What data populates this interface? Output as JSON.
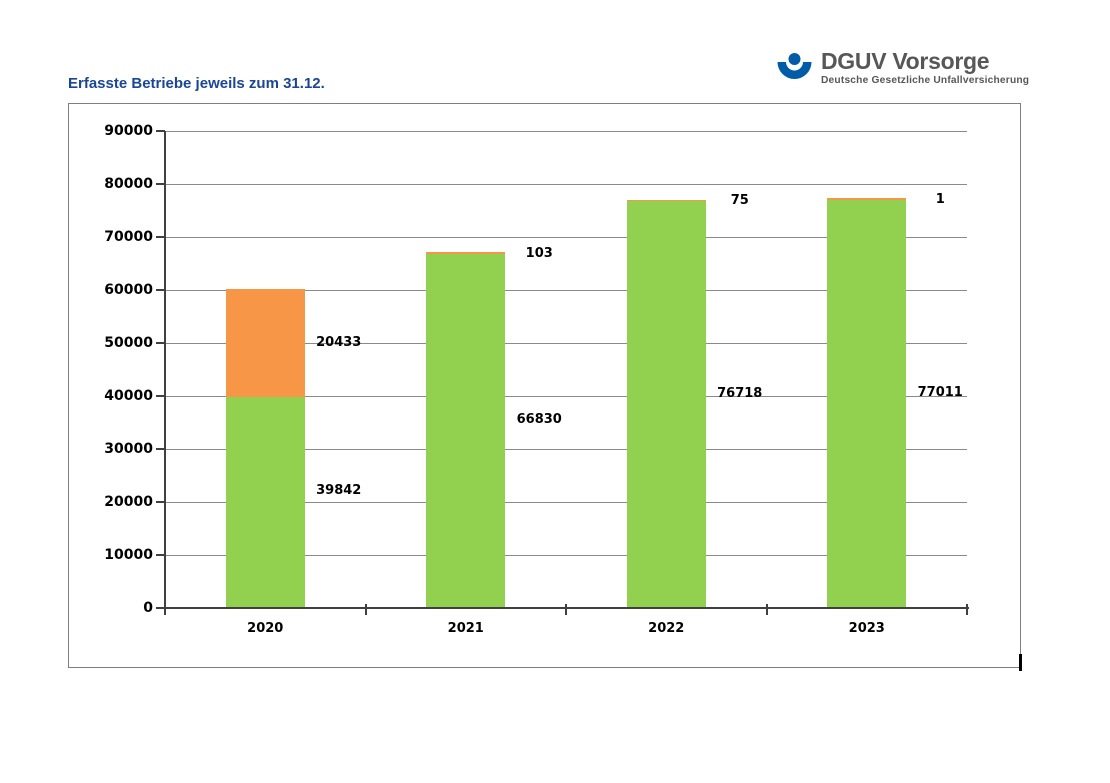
{
  "header": {
    "title": "Erfasste Betriebe jeweils zum 31.12."
  },
  "logo": {
    "wordmark": "DGUV Vorsorge",
    "subtitle": "Deutsche Gesetzliche Unfallversicherung",
    "icon": "dguv-person-icon",
    "brand_blue": "#005CA9",
    "text_gray": "#575756"
  },
  "colors": {
    "title_blue": "#1A4696",
    "frame_border": "#7F7F7F",
    "gridline": "#8A8A8A",
    "axis": "#404040",
    "label_black": "#000000"
  },
  "chart_data": {
    "type": "bar",
    "stacked": true,
    "title": "Erfasste Betriebe jeweils zum 31.12.",
    "categories": [
      "2020",
      "2021",
      "2022",
      "2023"
    ],
    "series": [
      {
        "name": "green",
        "color": "#92D050",
        "values": [
          39842,
          66830,
          76718,
          77011
        ]
      },
      {
        "name": "orange",
        "color": "#F79646",
        "values": [
          20433,
          103,
          75,
          1
        ]
      }
    ],
    "totals": [
      60275,
      66933,
      76793,
      77012
    ],
    "xlabel": "",
    "ylabel": "",
    "ylim": [
      0,
      90000
    ],
    "ytick_step": 10000,
    "yticks": [
      "0",
      "10000",
      "20000",
      "30000",
      "40000",
      "50000",
      "60000",
      "70000",
      "80000",
      "90000"
    ],
    "grid": true,
    "legend": "none",
    "data_labels": "shown right of each bar segment"
  }
}
